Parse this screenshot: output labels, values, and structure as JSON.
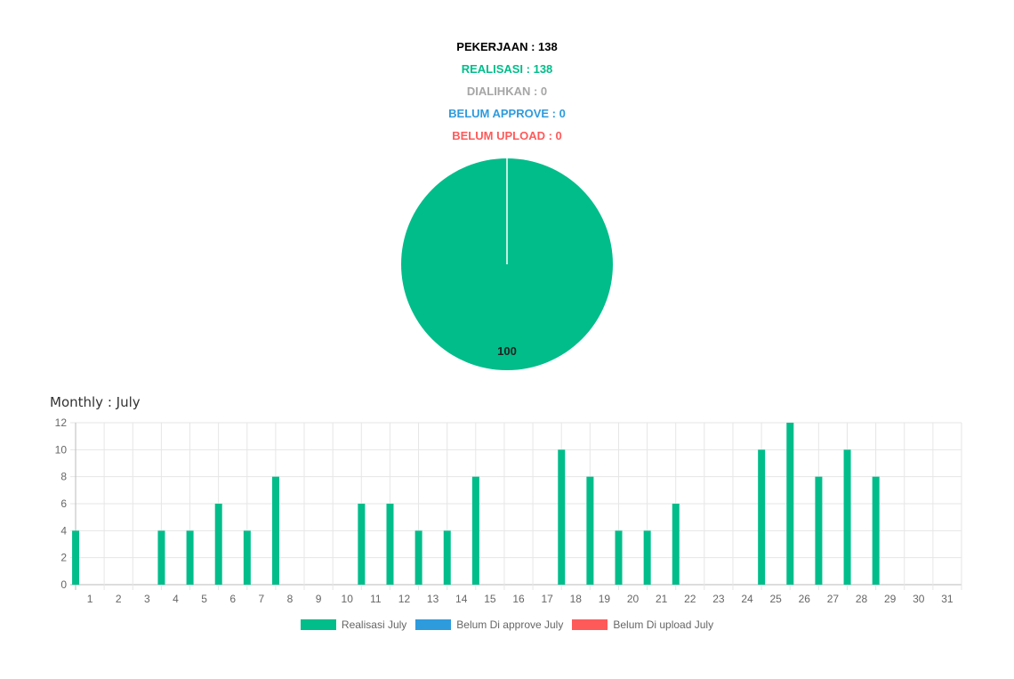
{
  "summary": {
    "pekerjaan": "PEKERJAAN : 138",
    "realisasi": "REALISASI : 138",
    "dialihkan": "DIALIHKAN : 0",
    "belum_approve": "BELUM APPROVE : 0",
    "belum_upload": "BELUM UPLOAD : 0"
  },
  "colors": {
    "pekerjaan": "#000000",
    "realisasi": "#00BD8A",
    "dialihkan": "#A6A6A6",
    "belum_approve": "#2E9BDD",
    "belum_upload": "#FF5A5A",
    "grid": "#E6E6E6"
  },
  "monthly": {
    "title": "Monthly : July"
  },
  "legend": [
    {
      "label": "Realisasi July",
      "color": "#00BD8A"
    },
    {
      "label": "Belum Di approve July",
      "color": "#2E9BDD"
    },
    {
      "label": "Belum Di upload July",
      "color": "#FF5A5A"
    }
  ],
  "chart_data": [
    {
      "type": "pie",
      "categories": [
        "Realisasi",
        "Dialihkan",
        "Belum Approve",
        "Belum Upload"
      ],
      "values": [
        100,
        0,
        0,
        0
      ],
      "data_labels": [
        "100"
      ]
    },
    {
      "type": "bar",
      "title": "Monthly : July",
      "categories": [
        "1",
        "2",
        "3",
        "4",
        "5",
        "6",
        "7",
        "8",
        "9",
        "10",
        "11",
        "12",
        "13",
        "14",
        "15",
        "16",
        "17",
        "18",
        "19",
        "20",
        "21",
        "22",
        "23",
        "24",
        "25",
        "26",
        "27",
        "28",
        "29",
        "30",
        "31"
      ],
      "series": [
        {
          "name": "Realisasi July",
          "values": [
            4,
            0,
            0,
            4,
            4,
            6,
            4,
            8,
            0,
            0,
            6,
            6,
            4,
            4,
            8,
            0,
            0,
            10,
            8,
            4,
            4,
            6,
            0,
            0,
            10,
            12,
            8,
            10,
            8,
            0,
            0
          ]
        },
        {
          "name": "Belum Di approve July",
          "values": [
            0,
            0,
            0,
            0,
            0,
            0,
            0,
            0,
            0,
            0,
            0,
            0,
            0,
            0,
            0,
            0,
            0,
            0,
            0,
            0,
            0,
            0,
            0,
            0,
            0,
            0,
            0,
            0,
            0,
            0,
            0
          ]
        },
        {
          "name": "Belum Di upload July",
          "values": [
            0,
            0,
            0,
            0,
            0,
            0,
            0,
            0,
            0,
            0,
            0,
            0,
            0,
            0,
            0,
            0,
            0,
            0,
            0,
            0,
            0,
            0,
            0,
            0,
            0,
            0,
            0,
            0,
            0,
            0,
            0
          ]
        }
      ],
      "ylim": [
        0,
        12
      ],
      "yticks": [
        0,
        2,
        4,
        6,
        8,
        10,
        12
      ],
      "grid": true,
      "legend_position": "bottom"
    }
  ]
}
